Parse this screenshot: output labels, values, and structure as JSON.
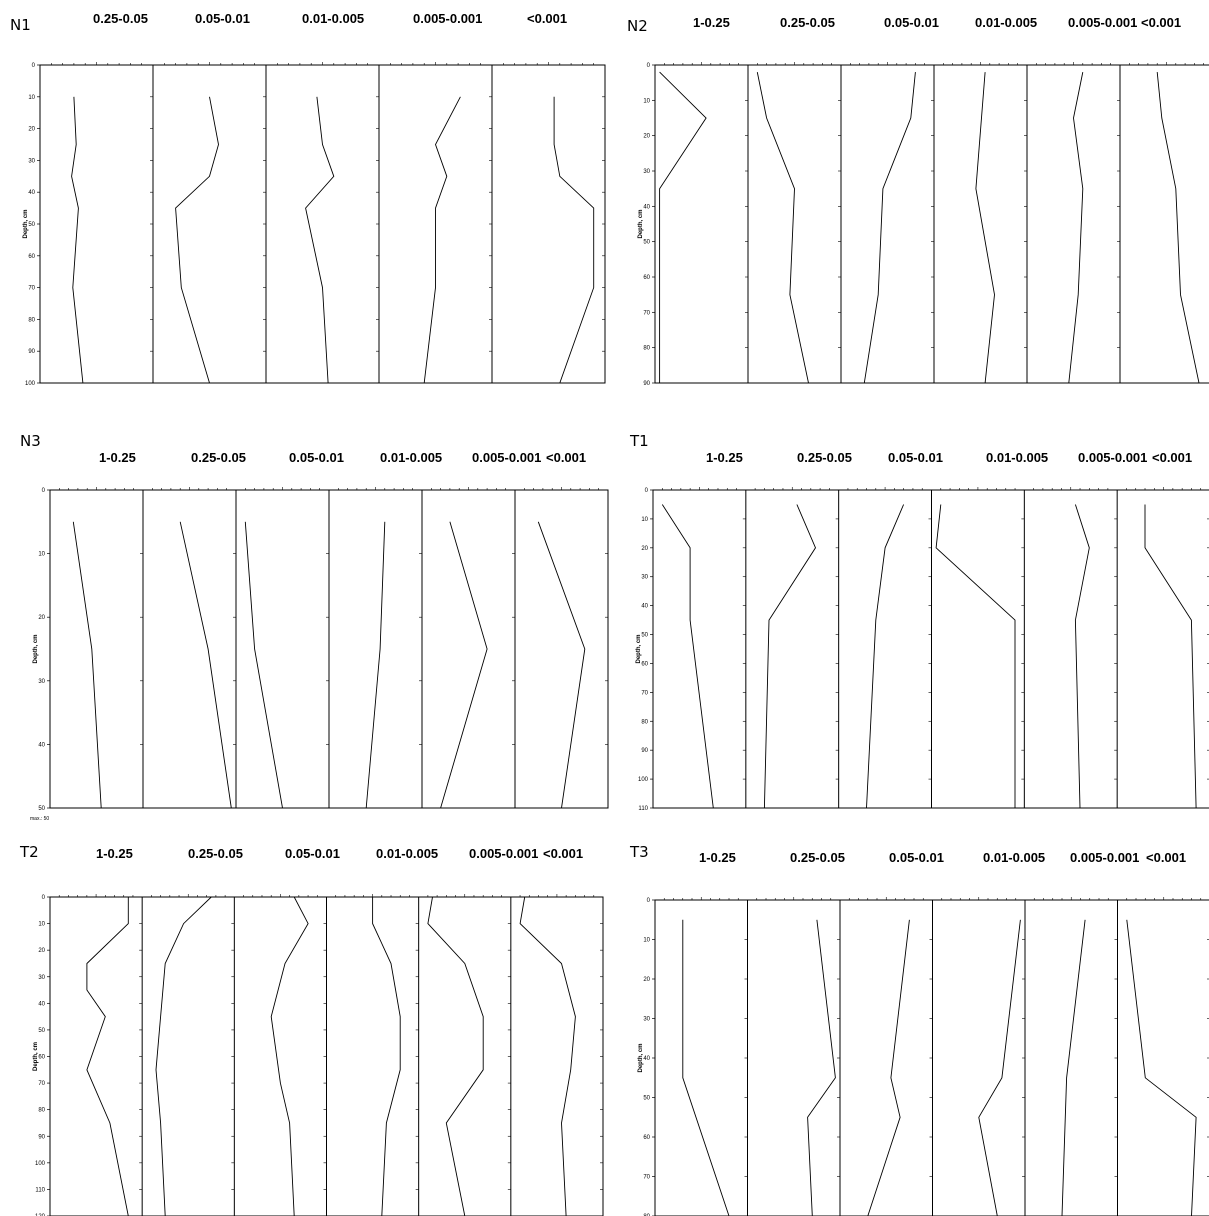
{
  "chart_data": [
    {
      "type": "line",
      "title": "N1",
      "ylabel": "Depth, cm",
      "ylim": [
        0,
        100
      ],
      "y_ticks": [
        "0",
        "10",
        "20",
        "30",
        "40",
        "50",
        "60",
        "70",
        "80",
        "90",
        "100"
      ],
      "columns": [
        {
          "name": "0.25-0.05",
          "points": [
            [
              0.3,
              10
            ],
            [
              0.32,
              25
            ],
            [
              0.28,
              35
            ],
            [
              0.34,
              45
            ],
            [
              0.29,
              70
            ],
            [
              0.38,
              100
            ]
          ]
        },
        {
          "name": "0.05-0.01",
          "points": [
            [
              0.5,
              10
            ],
            [
              0.58,
              25
            ],
            [
              0.5,
              35
            ],
            [
              0.2,
              45
            ],
            [
              0.25,
              70
            ],
            [
              0.5,
              100
            ]
          ]
        },
        {
          "name": "0.01-0.005",
          "points": [
            [
              0.45,
              10
            ],
            [
              0.5,
              25
            ],
            [
              0.6,
              35
            ],
            [
              0.35,
              45
            ],
            [
              0.5,
              70
            ],
            [
              0.55,
              100
            ]
          ]
        },
        {
          "name": "0.005-0.001",
          "points": [
            [
              0.72,
              10
            ],
            [
              0.5,
              25
            ],
            [
              0.6,
              35
            ],
            [
              0.5,
              45
            ],
            [
              0.5,
              70
            ],
            [
              0.4,
              100
            ]
          ]
        },
        {
          "name": "<0.001",
          "points": [
            [
              0.55,
              10
            ],
            [
              0.55,
              25
            ],
            [
              0.6,
              35
            ],
            [
              0.9,
              45
            ],
            [
              0.9,
              70
            ],
            [
              0.6,
              100
            ]
          ]
        }
      ]
    },
    {
      "type": "line",
      "title": "N2",
      "ylabel": "Depth, cm",
      "ylim": [
        0,
        90
      ],
      "y_ticks": [
        "0",
        "10",
        "20",
        "30",
        "40",
        "50",
        "60",
        "70",
        "80",
        "90"
      ],
      "columns": [
        {
          "name": "1-0.25",
          "points": [
            [
              0.05,
              2
            ],
            [
              0.55,
              15
            ],
            [
              0.05,
              35
            ],
            [
              0.05,
              90
            ]
          ]
        },
        {
          "name": "0.25-0.05",
          "points": [
            [
              0.1,
              2
            ],
            [
              0.2,
              15
            ],
            [
              0.5,
              35
            ],
            [
              0.45,
              65
            ],
            [
              0.65,
              90
            ]
          ]
        },
        {
          "name": "0.05-0.01",
          "points": [
            [
              0.8,
              2
            ],
            [
              0.75,
              15
            ],
            [
              0.45,
              35
            ],
            [
              0.4,
              65
            ],
            [
              0.25,
              90
            ]
          ]
        },
        {
          "name": "0.01-0.005",
          "points": [
            [
              0.55,
              2
            ],
            [
              0.45,
              35
            ],
            [
              0.65,
              65
            ],
            [
              0.55,
              90
            ]
          ]
        },
        {
          "name": "0.005-0.001",
          "points": [
            [
              0.6,
              2
            ],
            [
              0.5,
              15
            ],
            [
              0.6,
              35
            ],
            [
              0.55,
              65
            ],
            [
              0.45,
              90
            ]
          ]
        },
        {
          "name": "<0.001",
          "points": [
            [
              0.4,
              2
            ],
            [
              0.45,
              15
            ],
            [
              0.6,
              35
            ],
            [
              0.65,
              65
            ],
            [
              0.85,
              90
            ]
          ]
        }
      ]
    },
    {
      "type": "line",
      "title": "N3",
      "ylabel": "Depth, cm",
      "ylim": [
        0,
        50
      ],
      "y_ticks": [
        "0",
        "10",
        "20",
        "30",
        "40",
        "50"
      ],
      "note": "max.: 50",
      "columns": [
        {
          "name": "1-0.25",
          "points": [
            [
              0.25,
              5
            ],
            [
              0.45,
              25
            ],
            [
              0.55,
              50
            ]
          ]
        },
        {
          "name": "0.25-0.05",
          "points": [
            [
              0.4,
              5
            ],
            [
              0.7,
              25
            ],
            [
              0.95,
              50
            ]
          ]
        },
        {
          "name": "0.05-0.01",
          "points": [
            [
              0.1,
              5
            ],
            [
              0.2,
              25
            ],
            [
              0.5,
              50
            ]
          ]
        },
        {
          "name": "0.01-0.005",
          "points": [
            [
              0.6,
              5
            ],
            [
              0.55,
              25
            ],
            [
              0.4,
              50
            ]
          ]
        },
        {
          "name": "0.005-0.001",
          "points": [
            [
              0.3,
              5
            ],
            [
              0.7,
              25
            ],
            [
              0.2,
              50
            ]
          ]
        },
        {
          "name": "<0.001",
          "points": [
            [
              0.25,
              5
            ],
            [
              0.75,
              25
            ],
            [
              0.5,
              50
            ]
          ]
        }
      ]
    },
    {
      "type": "line",
      "title": "T1",
      "ylabel": "Depth, cm",
      "ylim": [
        0,
        110
      ],
      "y_ticks": [
        "0",
        "10",
        "20",
        "30",
        "40",
        "50",
        "60",
        "70",
        "80",
        "90",
        "100",
        "110"
      ],
      "columns": [
        {
          "name": "1-0.25",
          "points": [
            [
              0.1,
              5
            ],
            [
              0.4,
              20
            ],
            [
              0.4,
              45
            ],
            [
              0.65,
              110
            ]
          ]
        },
        {
          "name": "0.25-0.05",
          "points": [
            [
              0.55,
              5
            ],
            [
              0.75,
              20
            ],
            [
              0.25,
              45
            ],
            [
              0.2,
              110
            ]
          ]
        },
        {
          "name": "0.05-0.01",
          "points": [
            [
              0.7,
              5
            ],
            [
              0.5,
              20
            ],
            [
              0.4,
              45
            ],
            [
              0.3,
              110
            ]
          ]
        },
        {
          "name": "0.01-0.005",
          "points": [
            [
              0.1,
              5
            ],
            [
              0.05,
              20
            ],
            [
              0.9,
              45
            ],
            [
              0.9,
              110
            ]
          ]
        },
        {
          "name": "0.005-0.001",
          "points": [
            [
              0.55,
              5
            ],
            [
              0.7,
              20
            ],
            [
              0.55,
              45
            ],
            [
              0.6,
              110
            ]
          ]
        },
        {
          "name": "<0.001",
          "points": [
            [
              0.3,
              5
            ],
            [
              0.3,
              20
            ],
            [
              0.8,
              45
            ],
            [
              0.85,
              110
            ]
          ]
        }
      ]
    },
    {
      "type": "line",
      "title": "T2",
      "ylabel": "Depth, cm",
      "ylim": [
        0,
        120
      ],
      "y_ticks": [
        "0",
        "10",
        "20",
        "30",
        "40",
        "50",
        "60",
        "70",
        "80",
        "90",
        "100",
        "110",
        "120"
      ],
      "columns": [
        {
          "name": "1-0.25",
          "points": [
            [
              0.85,
              0
            ],
            [
              0.85,
              10
            ],
            [
              0.4,
              25
            ],
            [
              0.4,
              35
            ],
            [
              0.6,
              45
            ],
            [
              0.4,
              65
            ],
            [
              0.65,
              85
            ],
            [
              0.85,
              120
            ]
          ]
        },
        {
          "name": "0.25-0.05",
          "points": [
            [
              0.75,
              0
            ],
            [
              0.45,
              10
            ],
            [
              0.25,
              25
            ],
            [
              0.2,
              45
            ],
            [
              0.15,
              65
            ],
            [
              0.2,
              85
            ],
            [
              0.25,
              120
            ]
          ]
        },
        {
          "name": "0.05-0.01",
          "points": [
            [
              0.65,
              0
            ],
            [
              0.8,
              10
            ],
            [
              0.55,
              25
            ],
            [
              0.4,
              45
            ],
            [
              0.5,
              70
            ],
            [
              0.6,
              85
            ],
            [
              0.65,
              120
            ]
          ]
        },
        {
          "name": "0.01-0.005",
          "points": [
            [
              0.5,
              0
            ],
            [
              0.5,
              10
            ],
            [
              0.7,
              25
            ],
            [
              0.75,
              35
            ],
            [
              0.8,
              45
            ],
            [
              0.8,
              65
            ],
            [
              0.65,
              85
            ],
            [
              0.6,
              120
            ]
          ]
        },
        {
          "name": "0.005-0.001",
          "points": [
            [
              0.15,
              0
            ],
            [
              0.1,
              10
            ],
            [
              0.5,
              25
            ],
            [
              0.7,
              45
            ],
            [
              0.7,
              65
            ],
            [
              0.3,
              85
            ],
            [
              0.5,
              120
            ]
          ]
        },
        {
          "name": "<0.001",
          "points": [
            [
              0.15,
              0
            ],
            [
              0.1,
              10
            ],
            [
              0.55,
              25
            ],
            [
              0.7,
              45
            ],
            [
              0.65,
              65
            ],
            [
              0.55,
              85
            ],
            [
              0.6,
              120
            ]
          ]
        }
      ]
    },
    {
      "type": "line",
      "title": "T3",
      "ylabel": "Depth, cm",
      "ylim": [
        0,
        80
      ],
      "y_ticks": [
        "0",
        "10",
        "20",
        "30",
        "40",
        "50",
        "60",
        "70",
        "80"
      ],
      "columns": [
        {
          "name": "1-0.25",
          "points": [
            [
              0.3,
              5
            ],
            [
              0.3,
              45
            ],
            [
              0.8,
              80
            ]
          ]
        },
        {
          "name": "0.25-0.05",
          "points": [
            [
              0.75,
              5
            ],
            [
              0.95,
              45
            ],
            [
              0.65,
              55
            ],
            [
              0.7,
              80
            ]
          ]
        },
        {
          "name": "0.05-0.01",
          "points": [
            [
              0.75,
              5
            ],
            [
              0.55,
              45
            ],
            [
              0.65,
              55
            ],
            [
              0.3,
              80
            ]
          ]
        },
        {
          "name": "0.01-0.005",
          "points": [
            [
              0.95,
              5
            ],
            [
              0.75,
              45
            ],
            [
              0.5,
              55
            ],
            [
              0.7,
              80
            ]
          ]
        },
        {
          "name": "0.005-0.001",
          "points": [
            [
              0.65,
              5
            ],
            [
              0.45,
              45
            ],
            [
              0.4,
              80
            ]
          ]
        },
        {
          "name": "<0.001",
          "points": [
            [
              0.1,
              5
            ],
            [
              0.3,
              45
            ],
            [
              0.85,
              55
            ],
            [
              0.8,
              80
            ]
          ]
        }
      ]
    }
  ]
}
